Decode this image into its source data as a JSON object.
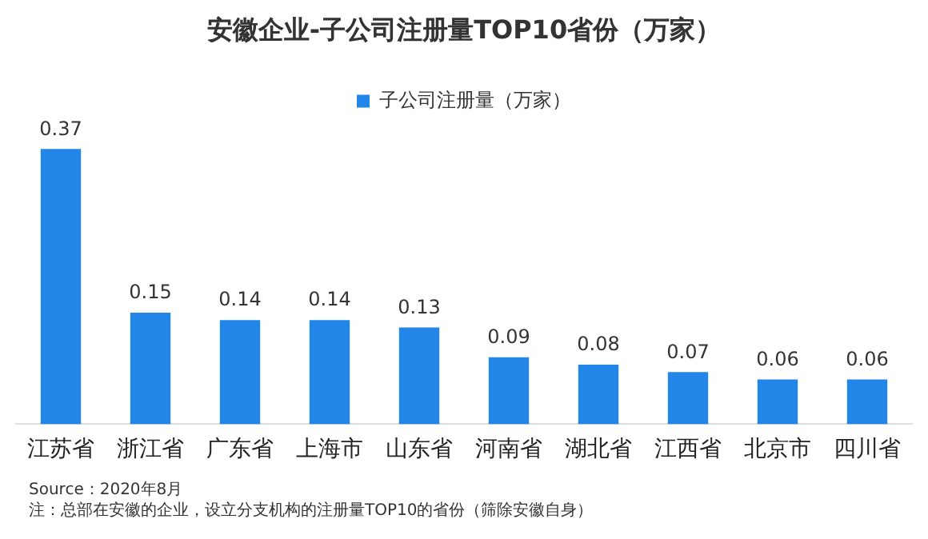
{
  "chart_data": {
    "type": "bar",
    "title": "安徽企业-子公司注册量TOP10省份（万家）",
    "categories": [
      "江苏省",
      "浙江省",
      "广东省",
      "上海市",
      "山东省",
      "河南省",
      "湖北省",
      "江西省",
      "北京市",
      "四川省"
    ],
    "series": [
      {
        "name": "子公司注册量（万家）",
        "color": "#2186e8",
        "values": [
          0.37,
          0.15,
          0.14,
          0.14,
          0.13,
          0.09,
          0.08,
          0.07,
          0.06,
          0.06
        ]
      }
    ],
    "data_labels": true,
    "legend": "top",
    "grid": false,
    "tick_labels": "x",
    "annotations": [
      "Source：2020年8月",
      "注：总部在安徽的企业，设立分支机构的注册量TOP10的省份（筛除安徽自身）"
    ]
  }
}
